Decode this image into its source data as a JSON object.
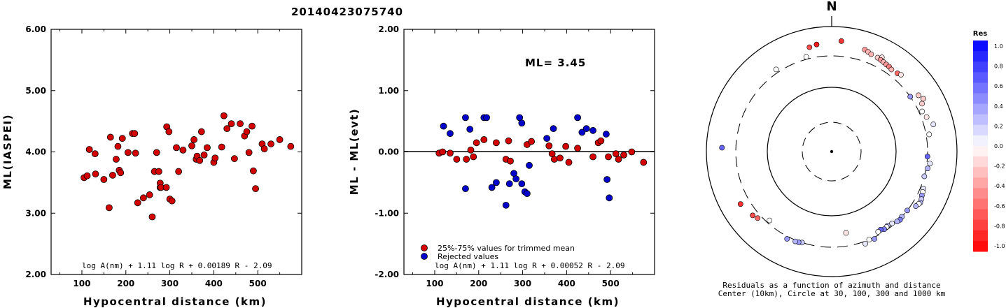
{
  "title": "20140423075740",
  "chart_data": [
    {
      "type": "scatter",
      "name": "ml-vs-distance",
      "xlabel": "Hypocentral distance (km)",
      "ylabel": "ML(IASPEI)",
      "xlim": [
        30,
        600
      ],
      "ylim": [
        2.0,
        6.0
      ],
      "xticks": [
        100,
        200,
        300,
        400,
        500
      ],
      "yticks": [
        "2.00",
        "3.00",
        "4.00",
        "5.00",
        "6.00"
      ],
      "equation": "log A(nm) + 1.11 log R + 0.00189 R - 2.09",
      "color": "#d40000",
      "points": [
        [
          105,
          3.58
        ],
        [
          112,
          3.61
        ],
        [
          117,
          4.04
        ],
        [
          130,
          3.97
        ],
        [
          131,
          3.64
        ],
        [
          150,
          3.55
        ],
        [
          162,
          3.09
        ],
        [
          165,
          4.24
        ],
        [
          170,
          3.62
        ],
        [
          178,
          3.88
        ],
        [
          182,
          4.09
        ],
        [
          185,
          3.7
        ],
        [
          188,
          3.66
        ],
        [
          192,
          4.22
        ],
        [
          205,
          3.99
        ],
        [
          215,
          4.3
        ],
        [
          220,
          4.3
        ],
        [
          222,
          3.98
        ],
        [
          227,
          3.17
        ],
        [
          240,
          3.25
        ],
        [
          254,
          3.3
        ],
        [
          260,
          2.94
        ],
        [
          265,
          3.68
        ],
        [
          270,
          3.99
        ],
        [
          275,
          3.68
        ],
        [
          278,
          3.42
        ],
        [
          278,
          3.49
        ],
        [
          280,
          3.42
        ],
        [
          292,
          3.42
        ],
        [
          293,
          4.41
        ],
        [
          298,
          4.33
        ],
        [
          300,
          3.23
        ],
        [
          305,
          3.2
        ],
        [
          315,
          4.07
        ],
        [
          320,
          3.68
        ],
        [
          330,
          4.03
        ],
        [
          350,
          4.1
        ],
        [
          355,
          4.2
        ],
        [
          360,
          3.88
        ],
        [
          362,
          3.93
        ],
        [
          368,
          3.86
        ],
        [
          372,
          4.33
        ],
        [
          378,
          3.95
        ],
        [
          385,
          4.07
        ],
        [
          400,
          3.83
        ],
        [
          403,
          3.9
        ],
        [
          418,
          4.08
        ],
        [
          423,
          4.59
        ],
        [
          430,
          4.38
        ],
        [
          440,
          4.46
        ],
        [
          447,
          3.89
        ],
        [
          460,
          4.46
        ],
        [
          470,
          4.26
        ],
        [
          475,
          4.33
        ],
        [
          480,
          3.99
        ],
        [
          487,
          4.42
        ],
        [
          490,
          3.69
        ],
        [
          495,
          3.4
        ],
        [
          510,
          4.13
        ],
        [
          515,
          4.05
        ],
        [
          530,
          4.13
        ],
        [
          550,
          4.2
        ],
        [
          575,
          4.09
        ]
      ]
    },
    {
      "type": "scatter",
      "name": "residual-vs-distance",
      "xlabel": "Hypocentral distance (km)",
      "ylabel": "ML - ML(evt)",
      "xlim": [
        30,
        600
      ],
      "ylim": [
        -2.0,
        2.0
      ],
      "xticks": [
        100,
        200,
        300,
        400,
        500
      ],
      "yticks": [
        "-2.00",
        "-1.00",
        "0.00",
        "1.00",
        "2.00"
      ],
      "ml_label": "ML= 3.45",
      "equation": "log A(nm) + 1.11 log R + 0.00052 R - 2.09",
      "series": [
        {
          "name": "25%-75% values for trimmed mean",
          "color": "#d40000",
          "points": [
            [
              110,
              -0.02
            ],
            [
              118,
              0.0
            ],
            [
              135,
              -0.02
            ],
            [
              150,
              -0.12
            ],
            [
              172,
              -0.12
            ],
            [
              182,
              0.03
            ],
            [
              188,
              -0.08
            ],
            [
              195,
              0.15
            ],
            [
              212,
              0.2
            ],
            [
              240,
              0.15
            ],
            [
              262,
              -0.12
            ],
            [
              268,
              0.18
            ],
            [
              272,
              -0.15
            ],
            [
              310,
              0.12
            ],
            [
              320,
              0.17
            ],
            [
              360,
              0.1
            ],
            [
              367,
              -0.03
            ],
            [
              372,
              -0.12
            ],
            [
              385,
              -0.1
            ],
            [
              398,
              0.09
            ],
            [
              405,
              -0.17
            ],
            [
              425,
              0.06
            ],
            [
              460,
              -0.08
            ],
            [
              472,
              0.15
            ],
            [
              478,
              0.18
            ],
            [
              495,
              -0.08
            ],
            [
              512,
              -0.03
            ],
            [
              518,
              -0.12
            ],
            [
              530,
              -0.05
            ],
            [
              548,
              0.0
            ],
            [
              575,
              -0.17
            ]
          ]
        },
        {
          "name": "Rejected values",
          "color": "#0000cc",
          "points": [
            [
              120,
              0.42
            ],
            [
              135,
              0.3
            ],
            [
              170,
              0.56
            ],
            [
              170,
              -0.6
            ],
            [
              180,
              0.37
            ],
            [
              212,
              0.56
            ],
            [
              218,
              0.56
            ],
            [
              230,
              -0.58
            ],
            [
              240,
              -0.5
            ],
            [
              262,
              -0.87
            ],
            [
              270,
              -0.52
            ],
            [
              280,
              -0.35
            ],
            [
              285,
              -0.44
            ],
            [
              293,
              0.56
            ],
            [
              298,
              0.47
            ],
            [
              298,
              -0.52
            ],
            [
              305,
              -0.65
            ],
            [
              310,
              -0.68
            ],
            [
              315,
              -0.22
            ],
            [
              355,
              0.22
            ],
            [
              370,
              0.38
            ],
            [
              425,
              0.56
            ],
            [
              435,
              0.32
            ],
            [
              445,
              0.38
            ],
            [
              460,
              0.35
            ],
            [
              490,
              0.29
            ],
            [
              492,
              -0.45
            ],
            [
              497,
              -0.75
            ]
          ]
        }
      ]
    },
    {
      "type": "polar-scatter",
      "name": "azimuth-distance-residuals",
      "north_label": "N",
      "caption": [
        "Residuals as a function of azimuth and distance",
        "Center (10km), Circle at 30, 100, 300 and 1000 km"
      ],
      "colorbar": {
        "title": "Res",
        "ticks": [
          "1.0",
          "0.8",
          "0.6",
          "0.4",
          "0.2",
          "0.0",
          "-0.2",
          "-0.4",
          "-0.6",
          "-0.8",
          "-1.0"
        ]
      },
      "points_note": "each point: [azimuth_deg, distance_km, residual]",
      "points": [
        [
          5,
          560,
          -0.8
        ],
        [
          352,
          500,
          -0.9
        ],
        [
          348,
          470,
          -0.7
        ],
        [
          18,
          480,
          -0.4
        ],
        [
          20,
          460,
          -0.3
        ],
        [
          22,
          440,
          -0.3
        ],
        [
          26,
          430,
          -0.2
        ],
        [
          28,
          470,
          -0.1
        ],
        [
          28,
          420,
          -0.4
        ],
        [
          30,
          410,
          -0.3
        ],
        [
          32,
          400,
          -0.4
        ],
        [
          34,
          395,
          -0.5
        ],
        [
          36,
          380,
          -0.3
        ],
        [
          40,
          390,
          -0.6
        ],
        [
          42,
          410,
          -0.1
        ],
        [
          326,
          345,
          0.0
        ],
        [
          345,
          330,
          0.0
        ],
        [
          55,
          300,
          0.4
        ],
        [
          57,
          410,
          -0.2
        ],
        [
          60,
          450,
          -0.2
        ],
        [
          62,
          390,
          -0.2
        ],
        [
          66,
          340,
          0.0
        ],
        [
          70,
          370,
          -0.1
        ],
        [
          75,
          440,
          0.1
        ],
        [
          80,
          340,
          0.0
        ],
        [
          93,
          300,
          0.6
        ],
        [
          97,
          340,
          0.1
        ],
        [
          100,
          320,
          0.3
        ],
        [
          105,
          300,
          0.2
        ],
        [
          112,
          340,
          0.1
        ],
        [
          114,
          350,
          0.0
        ],
        [
          116,
          360,
          0.4
        ],
        [
          118,
          380,
          0.2
        ],
        [
          120,
          390,
          0.3
        ],
        [
          121,
          380,
          0.0
        ],
        [
          123,
          360,
          0.3
        ],
        [
          128,
          300,
          0.4
        ],
        [
          133,
          300,
          0.3
        ],
        [
          135,
          310,
          0.5
        ],
        [
          137,
          300,
          0.3
        ],
        [
          140,
          280,
          0.1
        ],
        [
          143,
          270,
          0.3
        ],
        [
          144,
          275,
          0.0
        ],
        [
          146,
          280,
          0.5
        ],
        [
          148,
          265,
          0.6
        ],
        [
          150,
          270,
          0.0
        ],
        [
          154,
          320,
          0.4
        ],
        [
          157,
          300,
          0.0
        ],
        [
          160,
          330,
          0.1
        ],
        [
          170,
          190,
          -0.1
        ],
        [
          198,
          300,
          0.2
        ],
        [
          200,
          310,
          0.4
        ],
        [
          202,
          315,
          0.3
        ],
        [
          207,
          330,
          0.4
        ],
        [
          222,
          270,
          0.0
        ],
        [
          228,
          350,
          -0.6
        ],
        [
          231,
          380,
          -0.7
        ],
        [
          240,
          440,
          -0.8
        ],
        [
          272,
          530,
          0.6
        ]
      ]
    }
  ]
}
